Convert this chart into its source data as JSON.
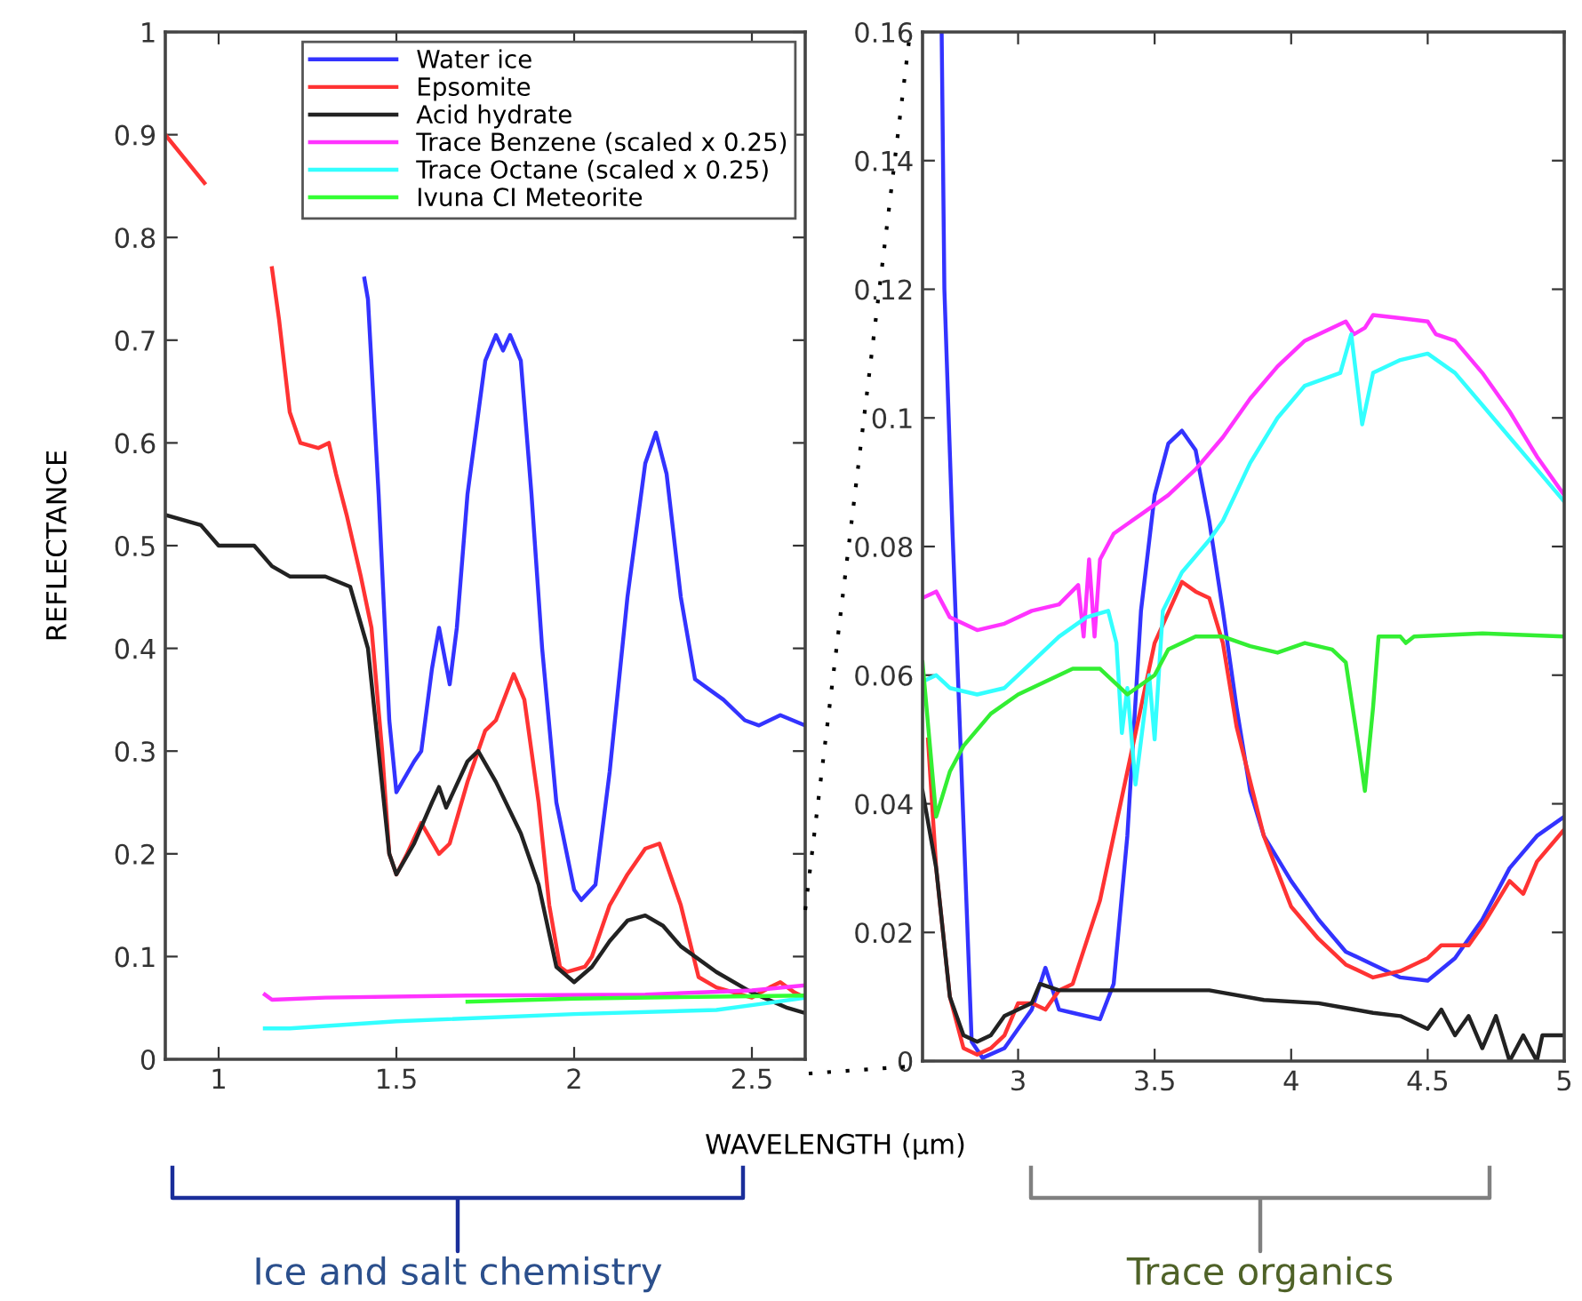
{
  "chart_data": [
    {
      "type": "line",
      "ylabel": "REFLECTANCE",
      "xlabel": "WAVELENGTH (µm)",
      "xlim": [
        0.85,
        2.65
      ],
      "ylim": [
        0,
        1
      ],
      "xticks": [
        1,
        1.5,
        2,
        2.5
      ],
      "yticks": [
        0,
        0.1,
        0.2,
        0.3,
        0.4,
        0.5,
        0.6,
        0.7,
        0.8,
        0.9,
        1
      ],
      "grid": false,
      "legend": "top right",
      "marker": "none",
      "line_style": "solid",
      "annotations": [
        "Ice and salt chemistry"
      ],
      "series": [
        {
          "name": "Water ice",
          "color": "#3333ff",
          "x": [
            1.41,
            1.42,
            1.45,
            1.48,
            1.5,
            1.55,
            1.57,
            1.6,
            1.62,
            1.65,
            1.67,
            1.7,
            1.75,
            1.78,
            1.8,
            1.82,
            1.85,
            1.88,
            1.91,
            1.95,
            2.0,
            2.02,
            2.06,
            2.1,
            2.15,
            2.2,
            2.23,
            2.26,
            2.3,
            2.34,
            2.38,
            2.42,
            2.48,
            2.52,
            2.58,
            2.65
          ],
          "values": [
            0.76,
            0.74,
            0.55,
            0.33,
            0.26,
            0.29,
            0.3,
            0.38,
            0.42,
            0.365,
            0.42,
            0.55,
            0.68,
            0.705,
            0.69,
            0.705,
            0.68,
            0.55,
            0.4,
            0.25,
            0.165,
            0.155,
            0.17,
            0.28,
            0.45,
            0.58,
            0.61,
            0.57,
            0.45,
            0.37,
            0.36,
            0.35,
            0.33,
            0.325,
            0.335,
            0.325
          ]
        },
        {
          "name": "Epsomite",
          "color": "#ff3333",
          "x": [
            0.85,
            0.96,
            1.0,
            1.05,
            1.1,
            1.15,
            1.17,
            1.2,
            1.23,
            1.28,
            1.31,
            1.33,
            1.36,
            1.4,
            1.43,
            1.46,
            1.48,
            1.5,
            1.53,
            1.57,
            1.62,
            1.65,
            1.7,
            1.75,
            1.78,
            1.83,
            1.86,
            1.9,
            1.93,
            1.96,
            1.98,
            2.03,
            2.05,
            2.1,
            2.15,
            2.2,
            2.24,
            2.3,
            2.35,
            2.4,
            2.45,
            2.5,
            2.55,
            2.58,
            2.62,
            2.65
          ],
          "values": [
            0.9,
            0.853,
            null,
            null,
            null,
            0.77,
            0.72,
            0.63,
            0.6,
            0.595,
            0.6,
            0.57,
            0.53,
            0.47,
            0.42,
            0.3,
            0.2,
            0.18,
            0.2,
            0.23,
            0.2,
            0.21,
            0.27,
            0.32,
            0.33,
            0.375,
            0.35,
            0.25,
            0.15,
            0.09,
            0.085,
            0.09,
            0.1,
            0.15,
            0.18,
            0.205,
            0.21,
            0.15,
            0.08,
            0.07,
            0.065,
            0.06,
            0.07,
            0.075,
            0.065,
            0.06
          ]
        },
        {
          "name": "Acid hydrate",
          "color": "#222222",
          "x": [
            0.85,
            0.95,
            1.0,
            1.05,
            1.1,
            1.15,
            1.2,
            1.3,
            1.37,
            1.42,
            1.45,
            1.48,
            1.5,
            1.55,
            1.6,
            1.62,
            1.64,
            1.66,
            1.7,
            1.73,
            1.78,
            1.85,
            1.9,
            1.95,
            2.0,
            2.05,
            2.1,
            2.15,
            2.2,
            2.25,
            2.3,
            2.4,
            2.5,
            2.6,
            2.65
          ],
          "values": [
            0.53,
            0.52,
            0.5,
            0.5,
            0.5,
            0.48,
            0.47,
            0.47,
            0.46,
            0.4,
            0.3,
            0.2,
            0.18,
            0.21,
            0.25,
            0.265,
            0.245,
            0.26,
            0.29,
            0.3,
            0.27,
            0.22,
            0.17,
            0.09,
            0.075,
            0.09,
            0.115,
            0.135,
            0.14,
            0.13,
            0.11,
            0.085,
            0.065,
            0.05,
            0.045
          ]
        },
        {
          "name": "Trace Benzene (scaled x 0.25)",
          "color": "#ff33ff",
          "x": [
            1.13,
            1.15,
            1.3,
            1.7,
            2.2,
            2.5,
            2.65
          ],
          "values": [
            0.063,
            0.058,
            0.06,
            0.062,
            0.063,
            0.067,
            0.072
          ]
        },
        {
          "name": "Trace Octane (scaled x 0.25)",
          "color": "#33ffff",
          "x": [
            1.13,
            1.2,
            1.5,
            2.0,
            2.4,
            2.55,
            2.65
          ],
          "values": [
            0.03,
            0.03,
            0.037,
            0.044,
            0.048,
            0.055,
            0.06
          ]
        },
        {
          "name": "Ivuna CI Meteorite",
          "color": "#33ff33",
          "x": [
            1.7,
            2.0,
            2.4,
            2.65
          ],
          "values": [
            0.056,
            0.059,
            0.061,
            0.062
          ]
        }
      ]
    },
    {
      "type": "line",
      "xlim": [
        2.65,
        5
      ],
      "ylim": [
        0,
        0.16
      ],
      "xticks": [
        3,
        3.5,
        4,
        4.5,
        5
      ],
      "yticks": [
        0,
        0.02,
        0.04,
        0.06,
        0.08,
        0.1,
        0.12,
        0.14,
        0.16
      ],
      "grid": false,
      "marker": "none",
      "line_style": "solid",
      "annotations": [
        "Trace organics"
      ],
      "series": [
        {
          "color": "#3333ff",
          "x": [
            2.72,
            2.73,
            2.76,
            2.83,
            2.87,
            2.95,
            3.0,
            3.05,
            3.1,
            3.15,
            3.2,
            3.3,
            3.35,
            3.4,
            3.45,
            3.5,
            3.55,
            3.6,
            3.65,
            3.7,
            3.75,
            3.8,
            3.85,
            3.9,
            4.0,
            4.1,
            4.2,
            4.3,
            4.4,
            4.5,
            4.6,
            4.7,
            4.8,
            4.9,
            5.0
          ],
          "values": [
            0.16,
            0.12,
            0.082,
            0.003,
            0.0005,
            0.002,
            0.005,
            0.008,
            0.0145,
            0.008,
            0.0075,
            0.0065,
            0.012,
            0.035,
            0.07,
            0.088,
            0.096,
            0.098,
            0.095,
            0.084,
            0.07,
            0.055,
            0.042,
            0.035,
            0.028,
            0.022,
            0.017,
            0.015,
            0.013,
            0.0125,
            0.016,
            0.022,
            0.03,
            0.035,
            0.038
          ]
        },
        {
          "color": "#ff3333",
          "x": [
            2.67,
            2.7,
            2.75,
            2.8,
            2.85,
            2.9,
            2.95,
            3.0,
            3.05,
            3.1,
            3.15,
            3.2,
            3.3,
            3.4,
            3.5,
            3.6,
            3.65,
            3.7,
            3.75,
            3.8,
            3.9,
            4.0,
            4.1,
            4.2,
            4.3,
            4.4,
            4.5,
            4.55,
            4.65,
            4.7,
            4.8,
            4.85,
            4.9,
            5.0
          ],
          "values": [
            0.05,
            0.03,
            0.01,
            0.002,
            0.001,
            0.002,
            0.004,
            0.009,
            0.009,
            0.008,
            0.011,
            0.012,
            0.025,
            0.045,
            0.065,
            0.0745,
            0.073,
            0.072,
            0.065,
            0.052,
            0.035,
            0.024,
            0.019,
            0.015,
            0.013,
            0.014,
            0.016,
            0.018,
            0.018,
            0.021,
            0.028,
            0.026,
            0.031,
            0.036
          ]
        },
        {
          "color": "#222222",
          "x": [
            2.65,
            2.7,
            2.75,
            2.8,
            2.85,
            2.9,
            2.95,
            3.0,
            3.05,
            3.08,
            3.15,
            3.3,
            3.5,
            3.7,
            3.9,
            4.1,
            4.3,
            4.4,
            4.5,
            4.55,
            4.6,
            4.65,
            4.7,
            4.75,
            4.8,
            4.85,
            4.9,
            4.92,
            5.0
          ],
          "values": [
            0.042,
            0.03,
            0.01,
            0.004,
            0.003,
            0.004,
            0.007,
            0.008,
            0.009,
            0.012,
            0.011,
            0.011,
            0.011,
            0.011,
            0.0095,
            0.009,
            0.0075,
            0.007,
            0.005,
            0.008,
            0.004,
            0.007,
            0.002,
            0.007,
            0.0,
            0.004,
            0.0,
            0.004,
            0.004
          ]
        },
        {
          "color": "#ff33ff",
          "x": [
            2.65,
            2.7,
            2.75,
            2.85,
            2.95,
            3.05,
            3.15,
            3.22,
            3.24,
            3.26,
            3.28,
            3.3,
            3.35,
            3.45,
            3.55,
            3.65,
            3.75,
            3.85,
            3.95,
            4.05,
            4.15,
            4.2,
            4.23,
            4.27,
            4.3,
            4.4,
            4.5,
            4.53,
            4.6,
            4.7,
            4.8,
            4.9,
            5.0
          ],
          "values": [
            0.072,
            0.073,
            0.069,
            0.067,
            0.068,
            0.07,
            0.071,
            0.074,
            0.066,
            0.078,
            0.066,
            0.078,
            0.082,
            0.085,
            0.088,
            0.092,
            0.097,
            0.103,
            0.108,
            0.112,
            0.114,
            0.115,
            0.113,
            0.114,
            0.116,
            0.1155,
            0.115,
            0.113,
            0.112,
            0.107,
            0.101,
            0.094,
            0.088
          ]
        },
        {
          "color": "#33ffff",
          "x": [
            2.65,
            2.7,
            2.75,
            2.85,
            2.95,
            3.05,
            3.15,
            3.25,
            3.33,
            3.36,
            3.38,
            3.4,
            3.43,
            3.48,
            3.5,
            3.53,
            3.6,
            3.7,
            3.75,
            3.85,
            3.95,
            4.05,
            4.18,
            4.22,
            4.26,
            4.3,
            4.4,
            4.5,
            4.6,
            4.7,
            4.8,
            4.9,
            5.0
          ],
          "values": [
            0.059,
            0.06,
            0.058,
            0.057,
            0.058,
            0.062,
            0.066,
            0.069,
            0.07,
            0.065,
            0.051,
            0.058,
            0.043,
            0.06,
            0.05,
            0.07,
            0.076,
            0.081,
            0.084,
            0.093,
            0.1,
            0.105,
            0.107,
            0.113,
            0.099,
            0.107,
            0.109,
            0.11,
            0.107,
            0.102,
            0.097,
            0.092,
            0.087
          ]
        },
        {
          "color": "#33ee33",
          "x": [
            2.65,
            2.7,
            2.75,
            2.8,
            2.9,
            3.0,
            3.1,
            3.2,
            3.3,
            3.4,
            3.5,
            3.55,
            3.65,
            3.75,
            3.85,
            3.95,
            4.05,
            4.15,
            4.2,
            4.25,
            4.27,
            4.3,
            4.32,
            4.4,
            4.42,
            4.45,
            4.7,
            5.0
          ],
          "values": [
            0.062,
            0.038,
            0.045,
            0.049,
            0.054,
            0.057,
            0.059,
            0.061,
            0.061,
            0.057,
            0.06,
            0.064,
            0.066,
            0.066,
            0.0645,
            0.0635,
            0.065,
            0.064,
            0.062,
            0.048,
            0.042,
            0.055,
            0.066,
            0.066,
            0.065,
            0.066,
            0.0665,
            0.066
          ]
        }
      ]
    }
  ]
}
